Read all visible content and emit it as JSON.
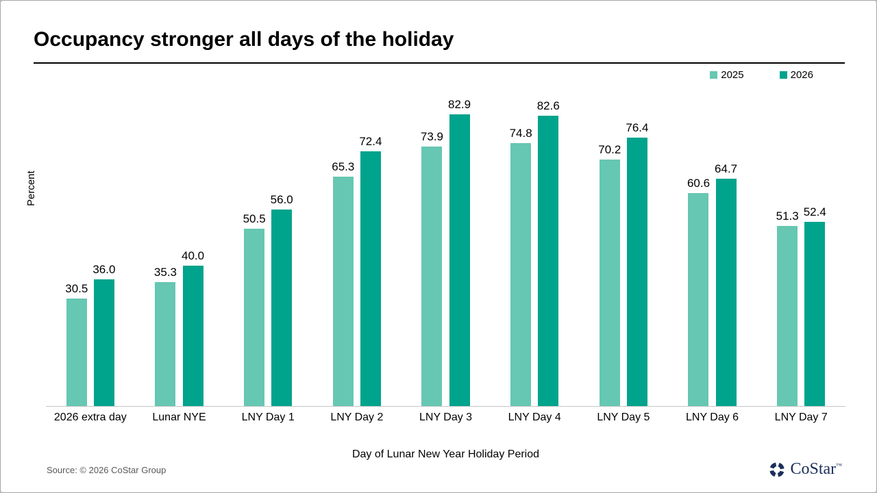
{
  "slide": {
    "title": "Occupancy stronger all days of the holiday",
    "source": "Source: © 2026 CoStar Group",
    "logo_text": "CoStar",
    "logo_tm": "™"
  },
  "chart_data": {
    "type": "bar",
    "title": "Occupancy stronger all days of the holiday",
    "categories": [
      "2026 extra day",
      "Lunar NYE",
      "LNY Day 1",
      "LNY Day 2",
      "LNY Day 3",
      "LNY Day 4",
      "LNY Day 5",
      "LNY Day 6",
      "LNY Day 7"
    ],
    "series": [
      {
        "name": "2025",
        "color": "#66C7B2",
        "values": [
          30.5,
          35.3,
          50.5,
          65.3,
          73.9,
          74.8,
          70.2,
          60.6,
          51.3
        ]
      },
      {
        "name": "2026",
        "color": "#00A38C",
        "values": [
          36.0,
          40.0,
          56.0,
          72.4,
          82.9,
          82.6,
          76.4,
          64.7,
          52.4
        ]
      }
    ],
    "xlabel": "Day of Lunar New Year Holiday Period",
    "ylabel": "Percent",
    "ylim": [
      0,
      90
    ],
    "grid": false,
    "legend_position": "top-right",
    "value_labels": true,
    "value_label_decimals": 1
  }
}
